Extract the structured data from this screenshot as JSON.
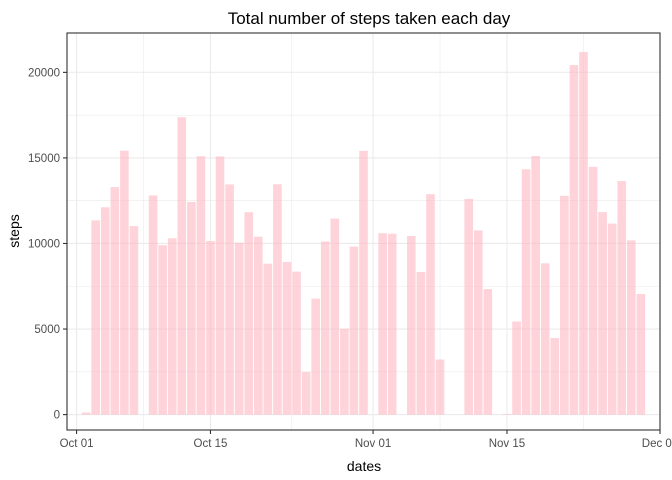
{
  "chart_data": {
    "type": "bar",
    "title": "Total number of steps taken each day",
    "xlabel": "dates",
    "ylabel": "steps",
    "x_axis": {
      "type": "date",
      "range": [
        "2012-09-30",
        "2012-12-01"
      ],
      "ticks": [
        {
          "date": "2012-10-01",
          "label": "Oct 01"
        },
        {
          "date": "2012-10-15",
          "label": "Oct 15"
        },
        {
          "date": "2012-11-01",
          "label": "Nov 01"
        },
        {
          "date": "2012-11-15",
          "label": "Nov 15"
        },
        {
          "date": "2012-12-01",
          "label": "Dec 01"
        }
      ]
    },
    "y_axis": {
      "range": [
        -900,
        22300
      ],
      "ticks": [
        0,
        5000,
        10000,
        15000,
        20000
      ]
    },
    "grid": true,
    "bar_color": "#FFB6C1",
    "bar_opacity": 0.6,
    "dates": [
      "2012-10-01",
      "2012-10-02",
      "2012-10-03",
      "2012-10-04",
      "2012-10-05",
      "2012-10-06",
      "2012-10-07",
      "2012-10-08",
      "2012-10-09",
      "2012-10-10",
      "2012-10-11",
      "2012-10-12",
      "2012-10-13",
      "2012-10-14",
      "2012-10-15",
      "2012-10-16",
      "2012-10-17",
      "2012-10-18",
      "2012-10-19",
      "2012-10-20",
      "2012-10-21",
      "2012-10-22",
      "2012-10-23",
      "2012-10-24",
      "2012-10-25",
      "2012-10-26",
      "2012-10-27",
      "2012-10-28",
      "2012-10-29",
      "2012-10-30",
      "2012-10-31",
      "2012-11-01",
      "2012-11-02",
      "2012-11-03",
      "2012-11-04",
      "2012-11-05",
      "2012-11-06",
      "2012-11-07",
      "2012-11-08",
      "2012-11-09",
      "2012-11-10",
      "2012-11-11",
      "2012-11-12",
      "2012-11-13",
      "2012-11-14",
      "2012-11-15",
      "2012-11-16",
      "2012-11-17",
      "2012-11-18",
      "2012-11-19",
      "2012-11-20",
      "2012-11-21",
      "2012-11-22",
      "2012-11-23",
      "2012-11-24",
      "2012-11-25",
      "2012-11-26",
      "2012-11-27",
      "2012-11-28",
      "2012-11-29",
      "2012-11-30"
    ],
    "values": [
      0,
      126,
      11352,
      12116,
      13294,
      15420,
      11015,
      0,
      12811,
      9900,
      10304,
      17382,
      12426,
      15098,
      10139,
      15084,
      13452,
      10056,
      11829,
      10395,
      8821,
      13460,
      8918,
      8355,
      2492,
      6778,
      10119,
      11458,
      5018,
      9819,
      15414,
      0,
      10600,
      10571,
      0,
      10439,
      8334,
      12883,
      3219,
      0,
      0,
      12608,
      10765,
      7336,
      0,
      41,
      5441,
      14339,
      15110,
      8841,
      4472,
      12787,
      20427,
      21194,
      14478,
      11834,
      11162,
      13646,
      10183,
      7047,
      0
    ]
  }
}
